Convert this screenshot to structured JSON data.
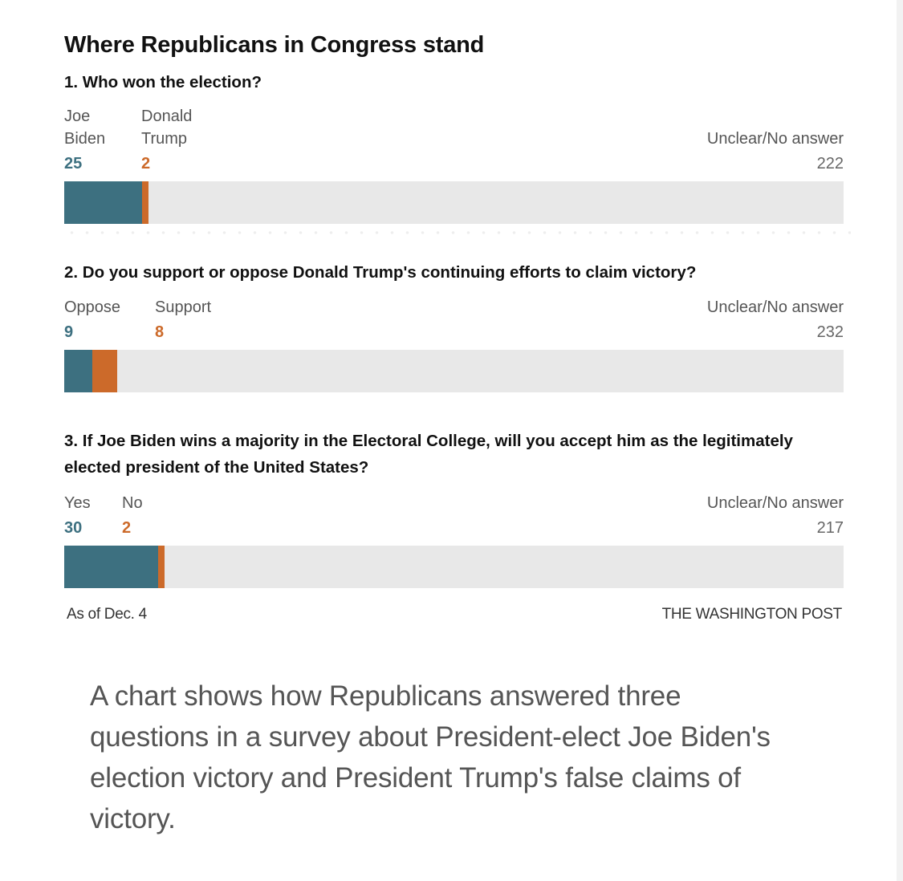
{
  "colors": {
    "primary": "#3d7080",
    "secondary": "#cc6a2a",
    "other": "#e8e8e8"
  },
  "chart_data": {
    "type": "bar",
    "orientation": "horizontal-stacked",
    "title": "Where Republicans in Congress stand",
    "questions": [
      {
        "question": "1. Who won the election?",
        "categories": [
          "Joe\nBiden",
          "Donald\nTrump",
          "Unclear/No answer"
        ],
        "values": [
          25,
          2,
          222
        ]
      },
      {
        "question": "2. Do you support or oppose Donald Trump's continuing efforts to claim victory?",
        "categories": [
          "Oppose",
          "Support",
          "Unclear/No answer"
        ],
        "values": [
          9,
          8,
          232
        ]
      },
      {
        "question": "3. If Joe Biden wins a majority in the Electoral College, will you accept him as the legitimately elected president of the United States?",
        "categories": [
          "Yes",
          "No",
          "Unclear/No answer"
        ],
        "values": [
          30,
          2,
          217
        ]
      }
    ],
    "note": "As of Dec. 4",
    "source": "THE WASHINGTON POST"
  },
  "caption": "A chart shows how Republicans answered three questions in a survey about President-elect Joe Biden's election victory and President Trump's false claims of victory."
}
